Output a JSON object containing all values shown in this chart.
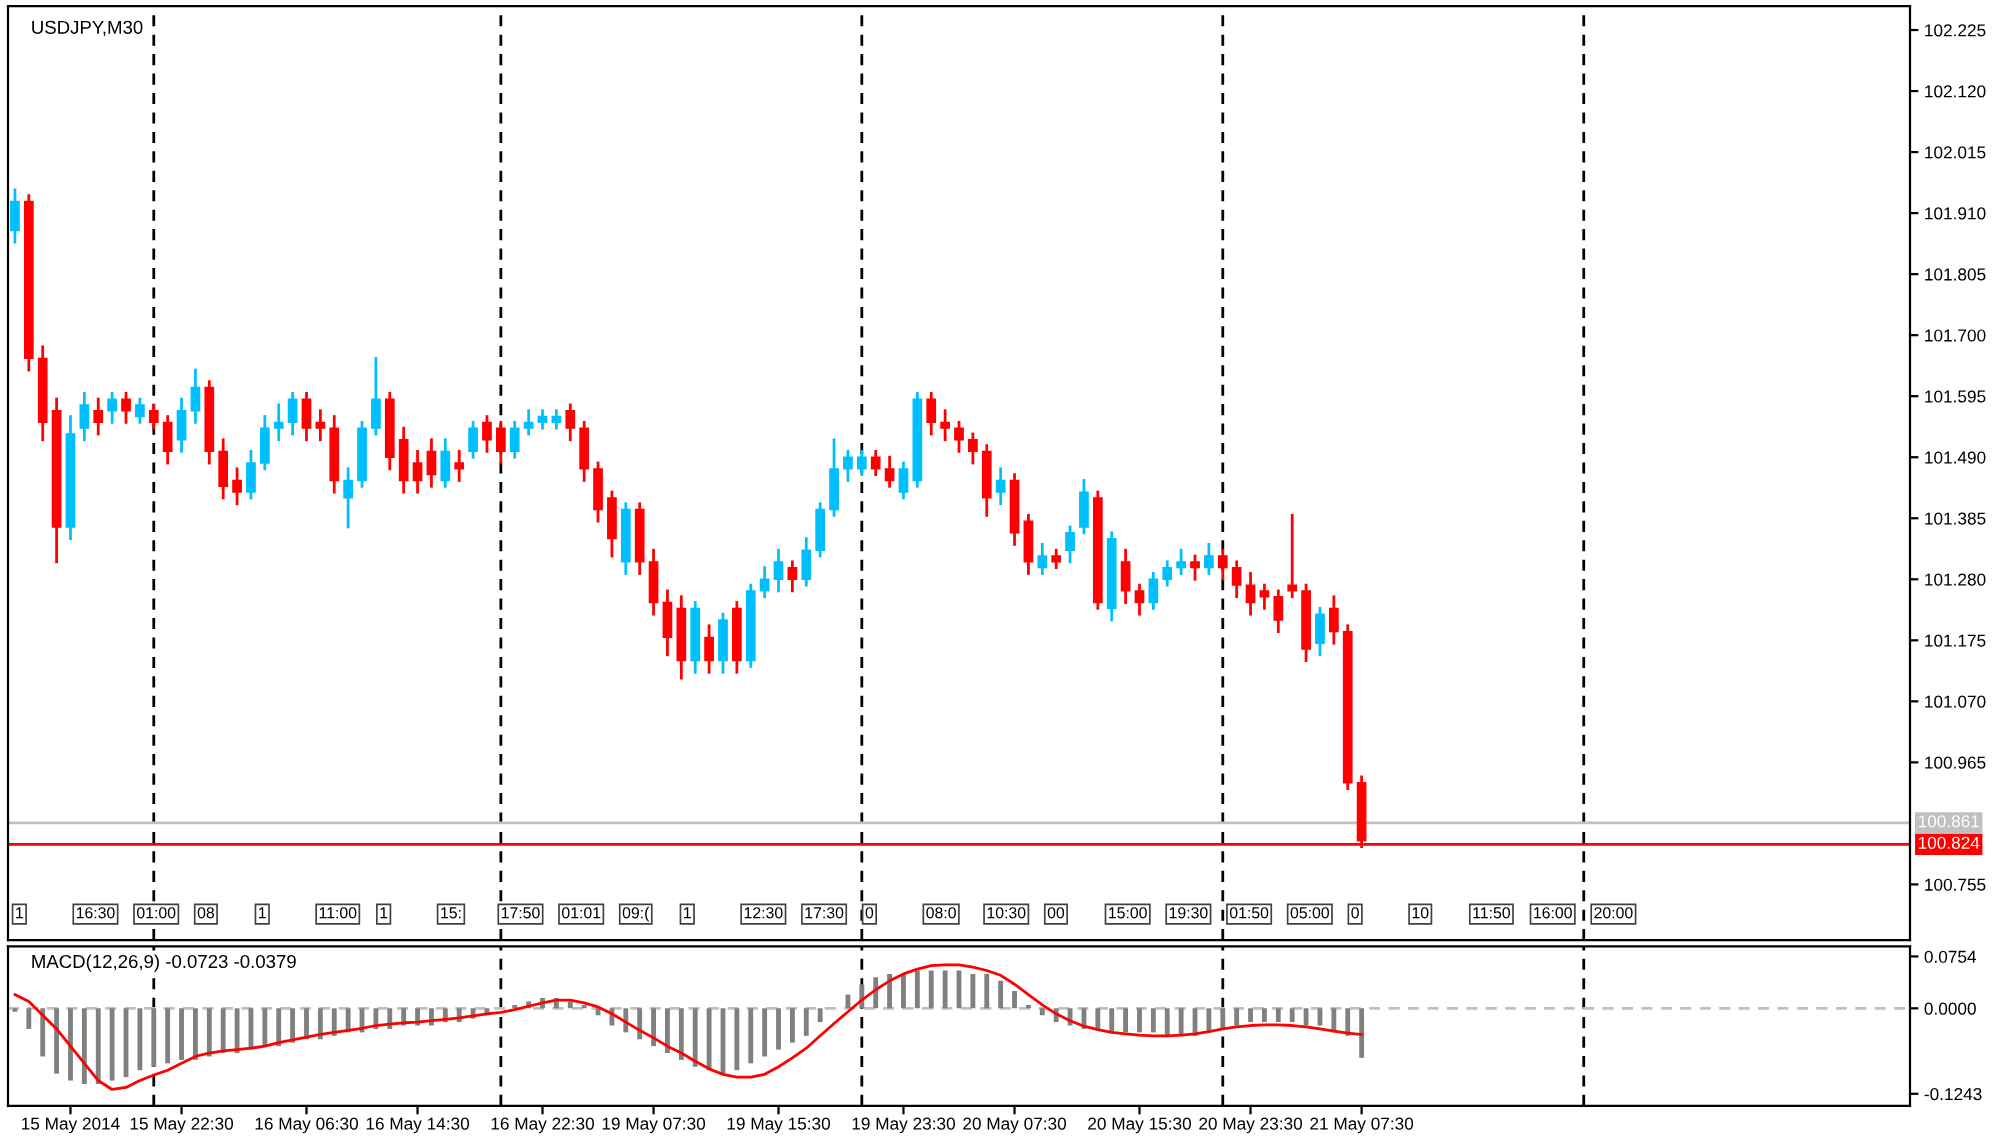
{
  "chart_data": [
    {
      "type": "candlestick",
      "title": "USDJPY,M30",
      "categories": [
        null,
        null,
        null,
        null,
        null,
        null,
        null,
        null,
        null,
        null,
        null,
        null,
        null,
        null,
        null,
        null,
        null,
        null,
        null,
        null,
        null,
        null,
        null,
        null,
        null,
        null,
        null,
        null,
        null,
        null,
        null,
        null,
        null,
        null,
        null,
        null,
        null,
        null,
        null,
        null,
        null,
        null,
        null,
        null,
        null,
        null,
        null,
        null,
        null,
        null,
        null,
        null,
        null,
        null,
        null,
        null,
        null,
        null,
        null,
        null,
        null,
        null,
        null,
        null,
        null,
        null,
        null,
        null,
        null,
        null,
        null,
        null,
        null,
        null,
        null,
        null,
        null,
        null,
        null,
        null,
        null,
        null,
        null,
        null,
        null,
        null,
        null,
        null,
        null,
        null,
        null,
        null,
        null,
        null,
        null,
        null,
        null,
        null,
        null,
        null,
        null,
        null,
        null,
        null,
        null,
        null,
        null,
        null,
        null,
        null,
        null,
        null,
        null,
        null,
        null,
        null,
        null,
        null,
        null,
        null,
        null,
        null,
        null,
        null,
        null,
        null,
        null,
        null,
        null,
        null,
        null,
        null,
        null,
        null,
        null,
        null,
        null
      ],
      "ohlc": [
        [
          101.88,
          101.95,
          101.86,
          101.93
        ],
        [
          101.93,
          101.94,
          101.64,
          101.66
        ],
        [
          101.66,
          101.68,
          101.52,
          101.55
        ],
        [
          101.57,
          101.59,
          101.31,
          101.37
        ],
        [
          101.37,
          101.56,
          101.35,
          101.53
        ],
        [
          101.54,
          101.6,
          101.52,
          101.58
        ],
        [
          101.57,
          101.59,
          101.53,
          101.55
        ],
        [
          101.57,
          101.6,
          101.55,
          101.59
        ],
        [
          101.59,
          101.6,
          101.55,
          101.57
        ],
        [
          101.56,
          101.59,
          101.55,
          101.58
        ],
        [
          101.57,
          101.58,
          101.54,
          101.55
        ],
        [
          101.55,
          101.56,
          101.48,
          101.5
        ],
        [
          101.52,
          101.59,
          101.5,
          101.57
        ],
        [
          101.57,
          101.64,
          101.55,
          101.61
        ],
        [
          101.61,
          101.62,
          101.48,
          101.5
        ],
        [
          101.5,
          101.52,
          101.42,
          101.44
        ],
        [
          101.45,
          101.47,
          101.41,
          101.43
        ],
        [
          101.43,
          101.5,
          101.42,
          101.48
        ],
        [
          101.48,
          101.56,
          101.47,
          101.54
        ],
        [
          101.54,
          101.58,
          101.52,
          101.55
        ],
        [
          101.55,
          101.6,
          101.53,
          101.59
        ],
        [
          101.59,
          101.6,
          101.52,
          101.54
        ],
        [
          101.55,
          101.57,
          101.52,
          101.54
        ],
        [
          101.54,
          101.56,
          101.43,
          101.45
        ],
        [
          101.42,
          101.47,
          101.37,
          101.45
        ],
        [
          101.45,
          101.55,
          101.44,
          101.54
        ],
        [
          101.54,
          101.66,
          101.53,
          101.59
        ],
        [
          101.59,
          101.6,
          101.47,
          101.49
        ],
        [
          101.52,
          101.54,
          101.43,
          101.45
        ],
        [
          101.48,
          101.5,
          101.43,
          101.45
        ],
        [
          101.5,
          101.52,
          101.44,
          101.46
        ],
        [
          101.45,
          101.52,
          101.44,
          101.5
        ],
        [
          101.48,
          101.5,
          101.45,
          101.47
        ],
        [
          101.5,
          101.55,
          101.49,
          101.54
        ],
        [
          101.55,
          101.56,
          101.5,
          101.52
        ],
        [
          101.54,
          101.55,
          101.48,
          101.5
        ],
        [
          101.5,
          101.55,
          101.49,
          101.54
        ],
        [
          101.54,
          101.57,
          101.53,
          101.55
        ],
        [
          101.55,
          101.57,
          101.54,
          101.56
        ],
        [
          101.55,
          101.57,
          101.54,
          101.56
        ],
        [
          101.57,
          101.58,
          101.52,
          101.54
        ],
        [
          101.54,
          101.55,
          101.45,
          101.47
        ],
        [
          101.47,
          101.48,
          101.38,
          101.4
        ],
        [
          101.42,
          101.43,
          101.32,
          101.35
        ],
        [
          101.31,
          101.41,
          101.29,
          101.4
        ],
        [
          101.4,
          101.41,
          101.29,
          101.31
        ],
        [
          101.31,
          101.33,
          101.22,
          101.24
        ],
        [
          101.24,
          101.26,
          101.15,
          101.18
        ],
        [
          101.23,
          101.25,
          101.11,
          101.14
        ],
        [
          101.14,
          101.24,
          101.12,
          101.23
        ],
        [
          101.18,
          101.2,
          101.12,
          101.14
        ],
        [
          101.14,
          101.22,
          101.12,
          101.21
        ],
        [
          101.23,
          101.24,
          101.12,
          101.14
        ],
        [
          101.14,
          101.27,
          101.13,
          101.26
        ],
        [
          101.26,
          101.3,
          101.25,
          101.28
        ],
        [
          101.28,
          101.33,
          101.26,
          101.31
        ],
        [
          101.3,
          101.31,
          101.26,
          101.28
        ],
        [
          101.28,
          101.35,
          101.27,
          101.33
        ],
        [
          101.33,
          101.41,
          101.32,
          101.4
        ],
        [
          101.4,
          101.52,
          101.39,
          101.47
        ],
        [
          101.47,
          101.5,
          101.45,
          101.49
        ],
        [
          101.47,
          101.5,
          101.46,
          101.49
        ],
        [
          101.49,
          101.5,
          101.46,
          101.47
        ],
        [
          101.47,
          101.49,
          101.44,
          101.45
        ],
        [
          101.43,
          101.48,
          101.42,
          101.47
        ],
        [
          101.45,
          101.6,
          101.44,
          101.59
        ],
        [
          101.59,
          101.6,
          101.53,
          101.55
        ],
        [
          101.55,
          101.57,
          101.52,
          101.54
        ],
        [
          101.54,
          101.55,
          101.5,
          101.52
        ],
        [
          101.52,
          101.53,
          101.48,
          101.5
        ],
        [
          101.5,
          101.51,
          101.39,
          101.42
        ],
        [
          101.43,
          101.47,
          101.41,
          101.45
        ],
        [
          101.45,
          101.46,
          101.34,
          101.36
        ],
        [
          101.38,
          101.39,
          101.29,
          101.31
        ],
        [
          101.3,
          101.34,
          101.29,
          101.32
        ],
        [
          101.32,
          101.33,
          101.3,
          101.31
        ],
        [
          101.33,
          101.37,
          101.31,
          101.36
        ],
        [
          101.37,
          101.45,
          101.36,
          101.43
        ],
        [
          101.42,
          101.43,
          101.23,
          101.24
        ],
        [
          101.23,
          101.36,
          101.21,
          101.35
        ],
        [
          101.31,
          101.33,
          101.24,
          101.26
        ],
        [
          101.26,
          101.27,
          101.22,
          101.24
        ],
        [
          101.24,
          101.29,
          101.23,
          101.28
        ],
        [
          101.28,
          101.31,
          101.27,
          101.3
        ],
        [
          101.3,
          101.33,
          101.29,
          101.31
        ],
        [
          101.31,
          101.32,
          101.28,
          101.3
        ],
        [
          101.3,
          101.34,
          101.29,
          101.32
        ],
        [
          101.32,
          101.33,
          101.28,
          101.3
        ],
        [
          101.3,
          101.31,
          101.25,
          101.27
        ],
        [
          101.27,
          101.29,
          101.22,
          101.24
        ],
        [
          101.26,
          101.27,
          101.23,
          101.25
        ],
        [
          101.25,
          101.26,
          101.19,
          101.21
        ],
        [
          101.27,
          101.39,
          101.25,
          101.26
        ],
        [
          101.26,
          101.27,
          101.14,
          101.16
        ],
        [
          101.17,
          101.23,
          101.15,
          101.22
        ],
        [
          101.23,
          101.25,
          101.17,
          101.19
        ],
        [
          101.19,
          101.2,
          100.92,
          100.93
        ],
        [
          100.93,
          100.94,
          100.82,
          100.83
        ],
        null,
        null,
        null,
        null,
        null,
        null,
        null,
        null,
        null,
        null,
        null,
        null,
        null,
        null,
        null,
        null,
        null,
        null,
        null,
        null,
        null,
        null,
        null,
        null,
        null,
        null,
        null,
        null,
        null,
        null,
        null,
        null,
        null,
        null,
        null,
        null,
        null,
        null,
        null
      ],
      "colors": [
        "#00bfff",
        "#ff0000",
        "#ff0000",
        "#ff0000",
        "#00bfff",
        "#00bfff",
        "#ff0000",
        "#00bfff",
        "#ff0000",
        "#00bfff",
        "#ff0000",
        "#ff0000",
        "#00bfff",
        "#00bfff",
        "#ff0000",
        "#ff0000",
        "#ff0000",
        "#00bfff",
        "#00bfff",
        "#00bfff",
        "#00bfff",
        "#ff0000",
        "#ff0000",
        "#ff0000",
        "#00bfff",
        "#00bfff",
        "#00bfff",
        "#ff0000",
        "#ff0000",
        "#ff0000",
        "#ff0000",
        "#00bfff",
        "#ff0000",
        "#00bfff",
        "#ff0000",
        "#ff0000",
        "#00bfff",
        "#00bfff",
        "#00bfff",
        "#00bfff",
        "#ff0000",
        "#ff0000",
        "#ff0000",
        "#ff0000",
        "#00bfff",
        "#ff0000",
        "#ff0000",
        "#ff0000",
        "#ff0000",
        "#00bfff",
        "#ff0000",
        "#00bfff",
        "#ff0000",
        "#00bfff",
        "#00bfff",
        "#00bfff",
        "#ff0000",
        "#00bfff",
        "#00bfff",
        "#00bfff",
        "#00bfff",
        "#00bfff",
        "#ff0000",
        "#ff0000",
        "#00bfff",
        "#00bfff",
        "#ff0000",
        "#ff0000",
        "#ff0000",
        "#ff0000",
        "#ff0000",
        "#00bfff",
        "#ff0000",
        "#ff0000",
        "#00bfff",
        "#ff0000",
        "#00bfff",
        "#00bfff",
        "#ff0000",
        "#00bfff",
        "#ff0000",
        "#ff0000",
        "#00bfff",
        "#00bfff",
        "#00bfff",
        "#ff0000",
        "#00bfff",
        "#ff0000",
        "#ff0000",
        "#ff0000",
        "#ff0000",
        "#ff0000",
        "#ff0000",
        "#ff0000",
        "#00bfff",
        "#ff0000",
        "#ff0000",
        "#ff0000",
        null,
        null,
        null,
        null,
        null,
        null,
        null,
        null,
        null,
        null,
        null,
        null,
        null,
        null,
        null,
        null,
        null,
        null,
        null,
        null,
        null,
        null,
        null,
        null,
        null,
        null,
        null,
        null,
        null,
        null,
        null,
        null,
        null,
        null,
        null,
        null,
        null,
        null,
        null
      ],
      "ylim": [
        100.659,
        102.266
      ],
      "yticks": [
        102.225,
        {
          "value": 102.12,
          "label": "102.120"
        },
        102.015,
        {
          "value": 101.91,
          "label": "101.910"
        },
        101.805,
        {
          "value": 101.7,
          "label": "101.700"
        },
        101.595,
        {
          "value": 101.49,
          "label": "101.490"
        },
        101.385,
        {
          "value": 101.28,
          "label": "101.280"
        },
        101.175,
        {
          "value": 101.07,
          "label": "101.070"
        },
        100.965,
        100.755
      ],
      "ref_lines": [
        {
          "axis": "y",
          "value": 100.861,
          "label": "100.861",
          "color": "#c0c0c0",
          "line_style": "solid"
        },
        {
          "axis": "y",
          "value": 100.824,
          "label": "100.824",
          "color": "#ff0000",
          "line_style": "solid"
        }
      ],
      "annotations": [
        "1",
        "16:30",
        "01:00",
        "08",
        "1",
        "11:00",
        "1",
        "15:",
        "17:50",
        "01:01",
        "09:(",
        "1",
        "12:30",
        "17:30",
        "0",
        "08:0",
        "10:30",
        "00",
        "15:00",
        "19:30",
        "01:50",
        "05:00",
        "0",
        "10",
        "11:50",
        "16:00",
        "20:00"
      ],
      "tick_labels": "y",
      "grid": false
    },
    {
      "type": "bar",
      "title": "MACD(12,26,9) -0.0723 -0.0379",
      "categories": [
        null,
        null,
        null,
        null,
        "15 May 2014",
        null,
        null,
        null,
        null,
        null,
        null,
        null,
        "15 May 22:30",
        null,
        null,
        null,
        null,
        null,
        null,
        null,
        null,
        "16 May 06:30",
        null,
        null,
        null,
        null,
        null,
        null,
        null,
        "16 May 14:30",
        null,
        null,
        null,
        null,
        null,
        null,
        null,
        null,
        "16 May 22:30",
        null,
        null,
        null,
        null,
        null,
        null,
        null,
        "19 May 07:30",
        null,
        null,
        null,
        null,
        null,
        null,
        null,
        null,
        "19 May 15:30",
        null,
        null,
        null,
        null,
        null,
        null,
        null,
        null,
        "19 May 23:30",
        null,
        null,
        null,
        null,
        null,
        null,
        null,
        "20 May 07:30",
        null,
        null,
        null,
        null,
        null,
        null,
        null,
        null,
        "20 May 15:30",
        null,
        null,
        null,
        null,
        null,
        null,
        null,
        "20 May 23:30",
        null,
        null,
        null,
        null,
        null,
        null,
        null,
        "21 May 07:30",
        null,
        null,
        null,
        null,
        null,
        null,
        null,
        null,
        null,
        null,
        null,
        null,
        null,
        null,
        null,
        null,
        null,
        null,
        null,
        null,
        null,
        null,
        null,
        null,
        null,
        null,
        null,
        null,
        null,
        null,
        null,
        null,
        null,
        null,
        null,
        null,
        null,
        null,
        null
      ],
      "series": [
        {
          "type": "bar",
          "color": "#808080",
          "values": [
            -0.005,
            -0.03,
            -0.07,
            -0.095,
            -0.105,
            -0.11,
            -0.11,
            -0.105,
            -0.1,
            -0.09,
            -0.085,
            -0.08,
            -0.075,
            -0.075,
            -0.07,
            -0.065,
            -0.065,
            -0.06,
            -0.055,
            -0.055,
            -0.05,
            -0.045,
            -0.045,
            -0.04,
            -0.035,
            -0.035,
            -0.03,
            -0.03,
            -0.025,
            -0.025,
            -0.025,
            -0.02,
            -0.02,
            -0.015,
            -0.01,
            0.0,
            0.005,
            0.01,
            0.015,
            0.015,
            0.01,
            0.005,
            -0.01,
            -0.025,
            -0.035,
            -0.045,
            -0.055,
            -0.065,
            -0.075,
            -0.085,
            -0.09,
            -0.095,
            -0.09,
            -0.08,
            -0.07,
            -0.06,
            -0.05,
            -0.04,
            -0.02,
            0.0,
            0.02,
            0.035,
            0.045,
            0.05,
            0.05,
            0.055,
            0.055,
            0.055,
            0.055,
            0.05,
            0.05,
            0.04,
            0.025,
            0.005,
            -0.01,
            -0.02,
            -0.025,
            -0.03,
            -0.03,
            -0.035,
            -0.035,
            -0.035,
            -0.035,
            -0.04,
            -0.04,
            -0.04,
            -0.035,
            -0.03,
            -0.025,
            -0.02,
            -0.02,
            -0.02,
            -0.02,
            -0.025,
            -0.025,
            -0.035,
            -0.04,
            -0.072,
            null,
            null,
            null,
            null,
            null,
            null,
            null,
            null,
            null,
            null,
            null,
            null,
            null,
            null,
            null,
            null,
            null,
            null,
            null,
            null,
            null,
            null,
            null,
            null,
            null,
            null,
            null,
            null,
            null,
            null,
            null,
            null,
            null,
            null,
            null,
            null,
            null,
            null,
            null
          ]
        },
        {
          "type": "line",
          "color": "#ff0000",
          "values": [
            0.02,
            0.01,
            -0.01,
            -0.03,
            -0.055,
            -0.08,
            -0.105,
            -0.118,
            -0.115,
            -0.105,
            -0.097,
            -0.09,
            -0.08,
            -0.07,
            -0.065,
            -0.062,
            -0.06,
            -0.058,
            -0.055,
            -0.05,
            -0.046,
            -0.042,
            -0.038,
            -0.035,
            -0.032,
            -0.029,
            -0.025,
            -0.023,
            -0.021,
            -0.02,
            -0.018,
            -0.016,
            -0.014,
            -0.011,
            -0.008,
            -0.006,
            -0.002,
            0.003,
            0.008,
            0.012,
            0.012,
            0.008,
            0.002,
            -0.008,
            -0.02,
            -0.032,
            -0.043,
            -0.055,
            -0.065,
            -0.077,
            -0.088,
            -0.096,
            -0.1,
            -0.1,
            -0.096,
            -0.085,
            -0.072,
            -0.058,
            -0.04,
            -0.022,
            -0.005,
            0.012,
            0.027,
            0.04,
            0.05,
            0.057,
            0.062,
            0.063,
            0.063,
            0.06,
            0.055,
            0.048,
            0.035,
            0.02,
            0.005,
            -0.008,
            -0.018,
            -0.026,
            -0.031,
            -0.035,
            -0.037,
            -0.039,
            -0.04,
            -0.04,
            -0.039,
            -0.037,
            -0.034,
            -0.03,
            -0.027,
            -0.025,
            -0.024,
            -0.024,
            -0.025,
            -0.027,
            -0.03,
            -0.033,
            -0.036,
            -0.038,
            null,
            null,
            null,
            null,
            null,
            null,
            null,
            null,
            null,
            null,
            null,
            null,
            null,
            null,
            null,
            null,
            null,
            null,
            null,
            null,
            null,
            null,
            null,
            null,
            null,
            null,
            null,
            null,
            null,
            null,
            null,
            null,
            null,
            null,
            null,
            null,
            null,
            null,
            null
          ]
        }
      ],
      "ylim": [
        -0.142,
        0.09
      ],
      "yticks": [
        0.0754,
        {
          "value": 0,
          "label": "0.0000"
        },
        -0.1243
      ],
      "ref_lines": [
        {
          "axis": "y",
          "value": 0,
          "color": "#c0c0c0",
          "line_style": "dashed"
        }
      ],
      "grid": false
    }
  ]
}
